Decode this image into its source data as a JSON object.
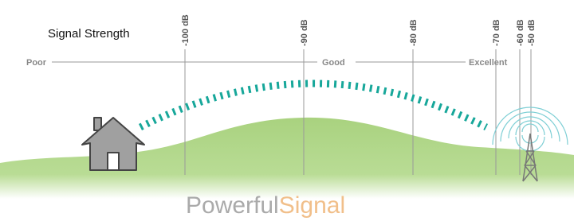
{
  "title": "Signal Strength",
  "scale": {
    "poor": "Poor",
    "good": "Good",
    "excellent": "Excellent"
  },
  "db_labels": [
    "-100 dB",
    "-90 dB",
    "-80 dB",
    "-70 dB",
    "-60 dB",
    "-50 dB"
  ],
  "brand": {
    "first": "Powerful",
    "second": "Signal"
  }
}
